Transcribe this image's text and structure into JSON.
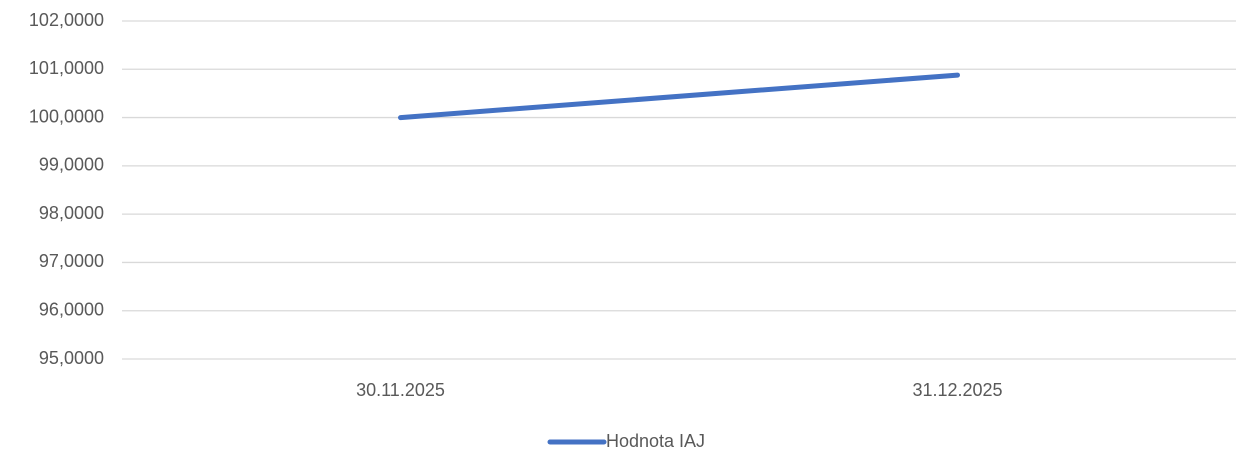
{
  "chart_data": {
    "type": "line",
    "categories": [
      "30.11.2025",
      "31.12.2025"
    ],
    "series": [
      {
        "name": "Hodnota IAJ",
        "color": "#4472c4",
        "values": [
          100.0,
          100.88
        ]
      }
    ],
    "ylim": [
      95,
      102
    ],
    "yticks": [
      {
        "value": 95,
        "label": "95,0000"
      },
      {
        "value": 96,
        "label": "96,0000"
      },
      {
        "value": 97,
        "label": "97,0000"
      },
      {
        "value": 98,
        "label": "98,0000"
      },
      {
        "value": 99,
        "label": "99,0000"
      },
      {
        "value": 100,
        "label": "100,0000"
      },
      {
        "value": 101,
        "label": "101,0000"
      },
      {
        "value": 102,
        "label": "102,0000"
      }
    ],
    "grid": true,
    "legend": "bottom"
  }
}
